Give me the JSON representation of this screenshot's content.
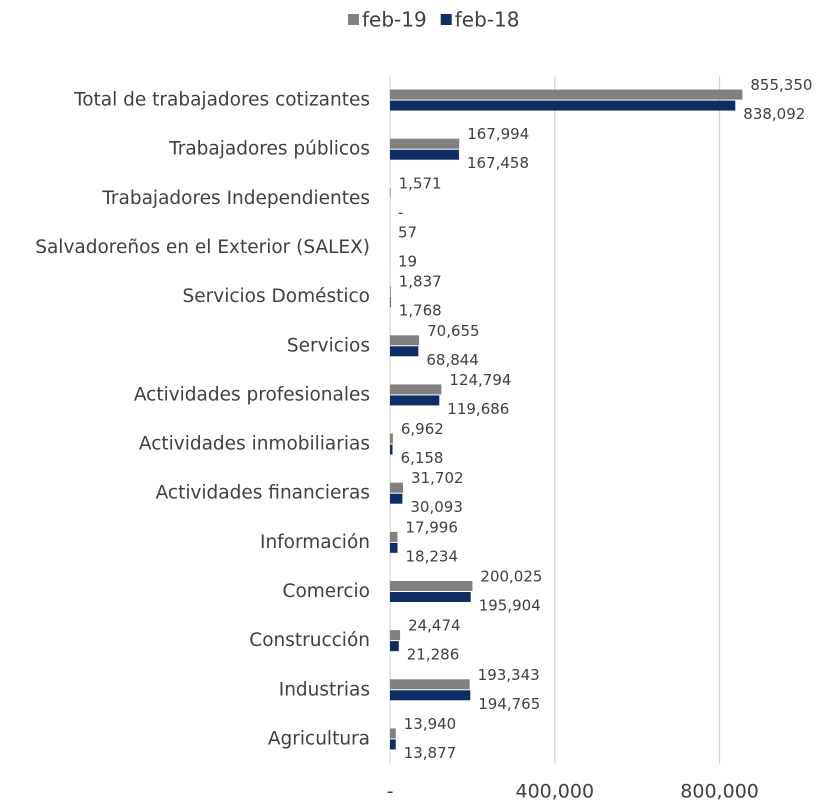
{
  "chart_data": {
    "type": "barh",
    "categories": [
      "Total de trabajadores cotizantes",
      "Trabajadores públicos",
      "Trabajadores Independientes",
      "Salvadoreños en el Exterior (SALEX)",
      "Servicios Doméstico",
      "Servicios",
      "Actividades profesionales",
      "Actividades inmobiliarias",
      "Actividades financieras",
      "Información",
      "Comercio",
      "Construcción",
      "Industrias",
      "Agricultura"
    ],
    "series": [
      {
        "name": "feb-19",
        "color": "#808080",
        "values": [
          855350,
          167994,
          1571,
          57,
          1837,
          70655,
          124794,
          6962,
          31702,
          17996,
          200025,
          24474,
          193343,
          13940
        ],
        "value_labels": [
          "855,350",
          "167,994",
          "1,571",
          "57",
          "1,837",
          "70,655",
          "124,794",
          "6,962",
          "31,702",
          "17,996",
          "200,025",
          "24,474",
          "193,343",
          "13,940"
        ]
      },
      {
        "name": "feb-18",
        "color": "#0e2d64",
        "values": [
          838092,
          167458,
          0,
          19,
          1768,
          68844,
          119686,
          6158,
          30093,
          18234,
          195904,
          21286,
          194765,
          13877
        ],
        "value_labels": [
          "838,092",
          "167,458",
          "-",
          "19",
          "1,768",
          "68,844",
          "119,686",
          "6,158",
          "30,093",
          "18,234",
          "195,904",
          "21,286",
          "194,765",
          "13,877"
        ]
      }
    ],
    "xlim": [
      0,
      1000000
    ],
    "xticks": [
      {
        "value": 0,
        "label": "-"
      },
      {
        "value": 400000,
        "label": "400,000"
      },
      {
        "value": 800000,
        "label": "800,000"
      }
    ],
    "grid": true,
    "legend": "top"
  }
}
